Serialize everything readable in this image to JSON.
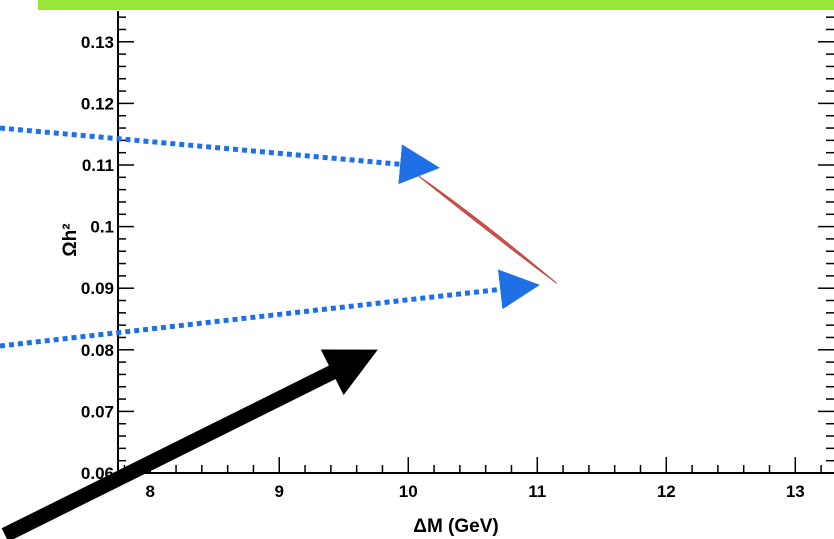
{
  "chart_data": {
    "type": "scatter",
    "xlabel": "ΔM (GeV)",
    "ylabel": "Ωh²",
    "xlim": [
      7.75,
      13.3
    ],
    "ylim": [
      0.06,
      0.135
    ],
    "x_ticks": [
      "8",
      "9",
      "10",
      "11",
      "12",
      "13"
    ],
    "y_ticks": [
      "0.06",
      "0.07",
      "0.08",
      "0.09",
      "0.1",
      "0.11",
      "0.12",
      "0.13"
    ],
    "grid": false,
    "series": [
      {
        "type": "region",
        "color": "#d0504a",
        "points": [
          [
            10.08,
            0.1082
          ],
          [
            10.6,
            0.1
          ],
          [
            11.15,
            0.0908
          ]
        ]
      }
    ],
    "annotations": [
      {
        "type": "dotted-arrow",
        "color": "#1f6fe6",
        "points_to": [
          10.1,
          0.109
        ]
      },
      {
        "type": "dotted-arrow",
        "color": "#1f6fe6",
        "points_to": [
          11.1,
          0.0906
        ]
      },
      {
        "type": "solid-arrow",
        "color": "#000000"
      }
    ],
    "colors": {
      "banner": "#99e639",
      "frame": "#000000",
      "region": "#d0504a",
      "dotted_arrow": "#1f6fe6"
    }
  }
}
